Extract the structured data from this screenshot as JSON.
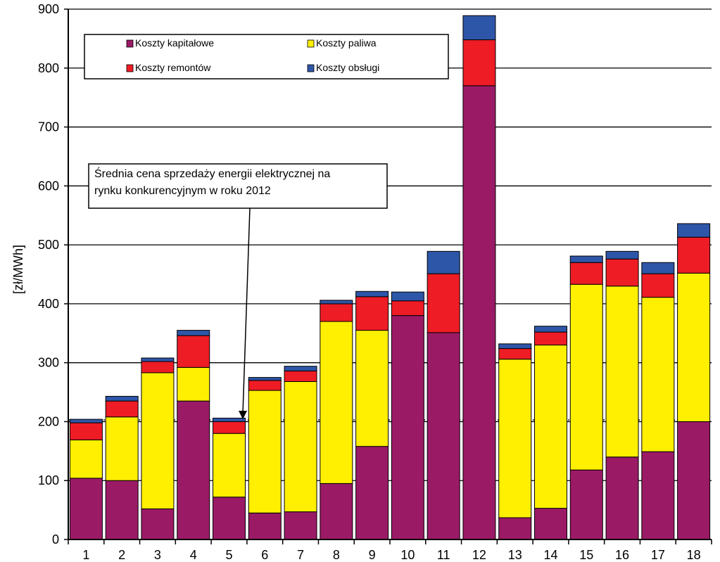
{
  "chart_data": {
    "type": "bar",
    "stacked": true,
    "title": "",
    "xlabel": "",
    "ylabel": "[zł/MWh]",
    "ylim": [
      0,
      900
    ],
    "yticks": [
      0,
      100,
      200,
      300,
      400,
      500,
      600,
      700,
      800,
      900
    ],
    "categories": [
      "1",
      "2",
      "3",
      "4",
      "5",
      "6",
      "7",
      "8",
      "9",
      "10",
      "11",
      "12",
      "13",
      "14",
      "15",
      "16",
      "17",
      "18"
    ],
    "series": [
      {
        "name": "Koszty kapitałowe",
        "color": "#9b1a66",
        "values": [
          104,
          100,
          52,
          235,
          72,
          45,
          47,
          95,
          158,
          380,
          351,
          770,
          37,
          53,
          118,
          140,
          149,
          200
        ]
      },
      {
        "name": "Koszty paliwa",
        "color": "#ffef00",
        "values": [
          65,
          108,
          231,
          57,
          108,
          208,
          221,
          275,
          197,
          0,
          0,
          0,
          269,
          277,
          315,
          290,
          262,
          252
        ]
      },
      {
        "name": "Koszty remontów",
        "color": "#ee1c25",
        "values": [
          29,
          27,
          19,
          54,
          20,
          17,
          18,
          30,
          57,
          25,
          100,
          78,
          18,
          22,
          37,
          46,
          40,
          61
        ]
      },
      {
        "name": "Koszty obsługi",
        "color": "#2e56a8",
        "values": [
          6,
          8,
          6,
          9,
          6,
          5,
          8,
          6,
          9,
          15,
          38,
          41,
          8,
          10,
          11,
          13,
          19,
          23
        ]
      }
    ],
    "reference_line": {
      "value": 203,
      "style": "dotted"
    },
    "annotation": {
      "lines": [
        "Średnia cena sprzedaży energii elektrycznej na",
        "rynku konkurencyjnym w roku 2012"
      ]
    },
    "legend": {
      "placement": "top-left",
      "columns": 2
    }
  }
}
